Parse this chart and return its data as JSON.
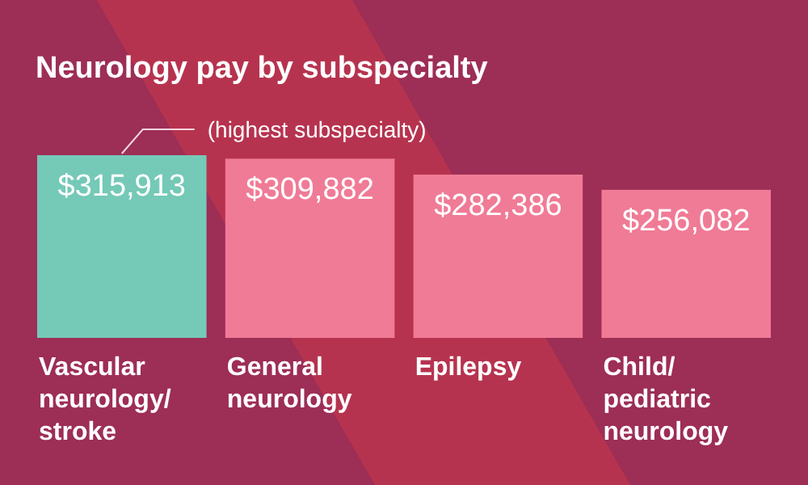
{
  "chart_data": {
    "type": "bar",
    "title": "Neurology pay by subspecialty",
    "categories": [
      "Vascular neurology/stroke",
      "General neurology",
      "Epilepsy",
      "Child/pediatric neurology"
    ],
    "values": [
      315913,
      309882,
      282386,
      256082
    ],
    "colors": [
      "#75c9b7",
      "#f07b96",
      "#f07b96",
      "#f07b96"
    ],
    "value_labels": [
      "$315,913",
      "$309,882",
      "$282,386",
      "$256,082"
    ],
    "annotations": [
      "(highest subspecialty)"
    ]
  }
}
